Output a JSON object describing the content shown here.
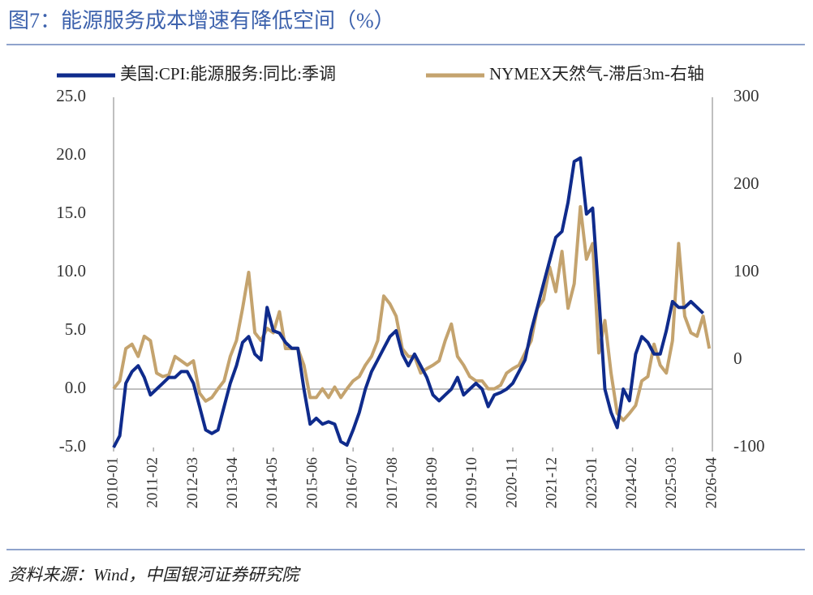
{
  "chart_data": {
    "type": "line",
    "title": "图7：能源服务成本增速有降低空间（%）",
    "source": "资料来源：Wind，中国银河证券研究院",
    "x": [
      "2010-01",
      "2010-03",
      "2010-05",
      "2010-07",
      "2010-09",
      "2010-11",
      "2011-01",
      "2011-03",
      "2011-05",
      "2011-07",
      "2011-09",
      "2011-11",
      "2012-01",
      "2012-03",
      "2012-05",
      "2012-07",
      "2012-09",
      "2012-11",
      "2013-01",
      "2013-03",
      "2013-05",
      "2013-07",
      "2013-09",
      "2013-11",
      "2014-01",
      "2014-03",
      "2014-05",
      "2014-07",
      "2014-09",
      "2014-11",
      "2015-01",
      "2015-03",
      "2015-05",
      "2015-07",
      "2015-09",
      "2015-11",
      "2016-01",
      "2016-03",
      "2016-05",
      "2016-07",
      "2016-09",
      "2016-11",
      "2017-01",
      "2017-03",
      "2017-05",
      "2017-07",
      "2017-09",
      "2017-11",
      "2018-01",
      "2018-03",
      "2018-05",
      "2018-07",
      "2018-09",
      "2018-11",
      "2019-01",
      "2019-03",
      "2019-05",
      "2019-07",
      "2019-09",
      "2019-11",
      "2020-01",
      "2020-03",
      "2020-05",
      "2020-07",
      "2020-09",
      "2020-11",
      "2021-01",
      "2021-03",
      "2021-05",
      "2021-07",
      "2021-09",
      "2021-11",
      "2022-01",
      "2022-03",
      "2022-05",
      "2022-07",
      "2022-09",
      "2022-11",
      "2023-01",
      "2023-03",
      "2023-05",
      "2023-07",
      "2023-09",
      "2023-11",
      "2024-01",
      "2024-03",
      "2024-05",
      "2024-07",
      "2024-09",
      "2024-11",
      "2025-01",
      "2025-03",
      "2025-05",
      "2025-07",
      "2025-09",
      "2025-11",
      "2026-01",
      "2026-03"
    ],
    "series": [
      {
        "name": "美国:CPI:能源服务:同比:季调",
        "color": "#0f2b8c",
        "values": [
          -5,
          -4,
          0.5,
          1.5,
          2,
          1,
          -0.5,
          0,
          0.5,
          1,
          1,
          1.5,
          1.5,
          0.5,
          -1.5,
          -3.5,
          -3.8,
          -3.5,
          -1.5,
          0.5,
          2,
          4,
          4.5,
          3,
          2.5,
          7,
          5,
          4.8,
          4,
          3.5,
          3.5,
          0,
          -3,
          -2.5,
          -3,
          -2.8,
          -3,
          -4.5,
          -4.8,
          -3.5,
          -2,
          0,
          1.5,
          2.5,
          3.5,
          4.5,
          5,
          3,
          2,
          3,
          2,
          1,
          -0.5,
          -1,
          -0.5,
          0,
          1,
          -0.5,
          0,
          0.5,
          0,
          -1.5,
          -0.5,
          -0.3,
          0,
          0.5,
          1.5,
          2.5,
          5,
          7,
          9,
          11,
          13,
          13.5,
          16,
          19.5,
          19.8,
          15,
          15.5,
          8,
          0,
          -2,
          -3.3,
          0,
          -1,
          3,
          4.5,
          4,
          3,
          3,
          5,
          7.5,
          7,
          7,
          7.5,
          7,
          6.5,
          null
        ]
      },
      {
        "name": "NYMEX天然气-滞后3m-右轴",
        "color": "#c4a36e",
        "axis": "y2",
        "values": [
          -33,
          -24,
          13,
          18,
          4,
          27,
          22,
          -15,
          -19,
          -17,
          4,
          -1,
          -6,
          -1,
          -38,
          -47,
          -43,
          -33,
          -24,
          4,
          22,
          59,
          100,
          31,
          22,
          36,
          31,
          55,
          13,
          13,
          13,
          -6,
          -43,
          -43,
          -33,
          -43,
          -31,
          -43,
          -33,
          -24,
          -19,
          -6,
          4,
          22,
          73,
          64,
          50,
          13,
          4,
          4,
          -15,
          -10,
          -6,
          -1,
          22,
          41,
          4,
          -6,
          -19,
          -24,
          -24,
          -33,
          -33,
          -29,
          -15,
          -10,
          -6,
          8,
          22,
          59,
          69,
          106,
          78,
          124,
          59,
          87,
          175,
          115,
          133,
          8,
          45,
          -15,
          -61,
          -69,
          -61,
          -52,
          -24,
          -19,
          18,
          -6,
          -15,
          22,
          133,
          50,
          31,
          27,
          50,
          13
        ]
      }
    ],
    "xlim": [
      "2010-01",
      "2026-04"
    ],
    "xticks": [
      "2010-01",
      "2011-02",
      "2012-03",
      "2013-04",
      "2014-05",
      "2015-06",
      "2016-07",
      "2017-08",
      "2018-09",
      "2019-10",
      "2020-11",
      "2021-12",
      "2023-01",
      "2024-02",
      "2025-03",
      "2026-04"
    ],
    "ylim": [
      -5,
      25
    ],
    "yticks": [
      {
        "value": -5,
        "label": "-5.0"
      },
      {
        "value": 0,
        "label": "0.0"
      },
      {
        "value": 5,
        "label": "5.0"
      },
      {
        "value": 10,
        "label": "10.0"
      },
      {
        "value": 15,
        "label": "15.0"
      },
      {
        "value": 20,
        "label": "20.0"
      },
      {
        "value": 25,
        "label": "25.0"
      }
    ],
    "y2lim": [
      -100,
      300
    ],
    "y2ticks": [
      -100,
      0,
      100,
      200,
      300
    ],
    "legend": "top"
  }
}
